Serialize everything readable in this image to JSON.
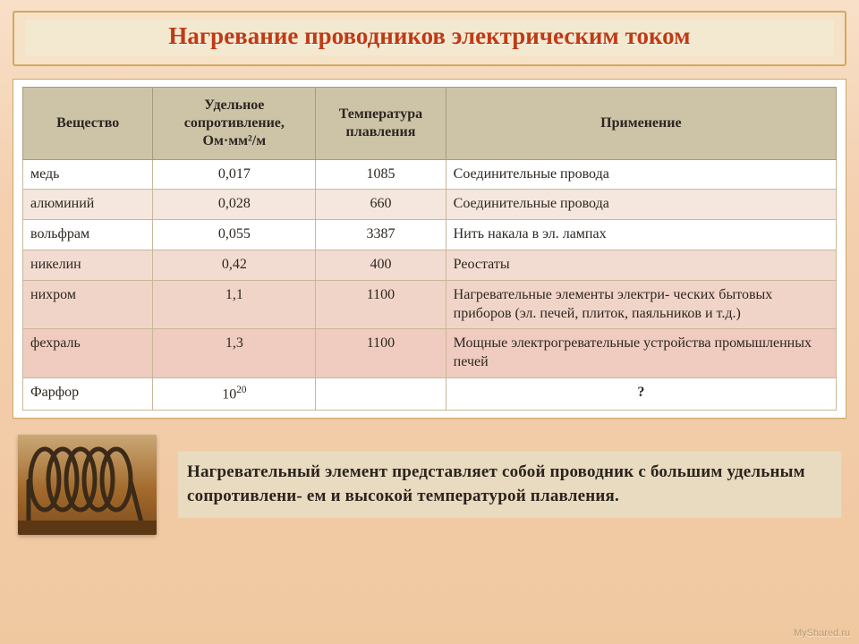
{
  "title": "Нагревание проводников электрическим током",
  "table": {
    "columns": [
      {
        "label": "Вещество",
        "width": "16%",
        "align": "left"
      },
      {
        "label": "Удельное сопротивление, Ом·мм²/м",
        "width": "20%",
        "align": "center"
      },
      {
        "label": "Температура плавления",
        "width": "16%",
        "align": "center"
      },
      {
        "label": "Применение",
        "width": "48%",
        "align": "left"
      }
    ],
    "rows": [
      {
        "substance": "медь",
        "resist": "0,017",
        "tmelt": "1085",
        "use": "Соединительные провода",
        "bg": "#ffffff"
      },
      {
        "substance": "алюминий",
        "resist": "0,028",
        "tmelt": "660",
        "use": "Соединительные провода",
        "bg": "#f5e7dd"
      },
      {
        "substance": "вольфрам",
        "resist": "0,055",
        "tmelt": "3387",
        "use": "Нить накала в эл. лампах",
        "bg": "#ffffff"
      },
      {
        "substance": "никелин",
        "resist": "0,42",
        "tmelt": "400",
        "use": "Реостаты",
        "bg": "#f2dcd1"
      },
      {
        "substance": "нихром",
        "resist": "1,1",
        "tmelt": "1100",
        "use": "Нагревательные элементы электри- ческих бытовых приборов (эл. печей, плиток, паяльников и т.д.)",
        "bg": "#f1d4c8"
      },
      {
        "substance": "фехраль",
        "resist": "1,3",
        "tmelt": "1100",
        "use": "Мощные электрогревательные устройства промышленных печей",
        "bg": "#efccbf"
      },
      {
        "substance": "Фарфор",
        "resist_html": "10<span class=\"sup\">20</span>",
        "tmelt": "",
        "use": "?",
        "use_is_q": true,
        "bg": "#ffffff"
      }
    ],
    "header_bg": "#cdc4a8",
    "border_color": "#c9b79a"
  },
  "note": "Нагревательный элемент представляет собой проводник с большим удельным сопротивлени- ем и высокой температурой плавления.",
  "coil_image": {
    "bg": "#a36a2c",
    "coil_color": "#3b2a18",
    "highlight": "#caa876"
  },
  "watermark": "MyShared.ru"
}
